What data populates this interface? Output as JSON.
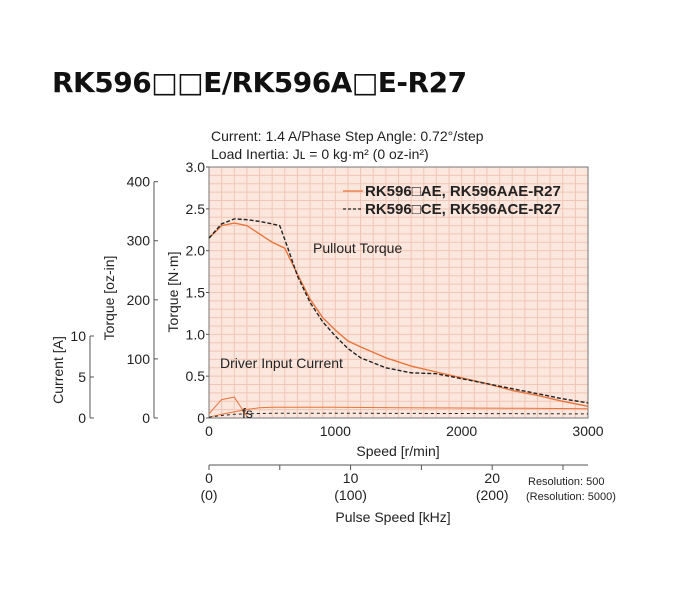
{
  "page": {
    "title": "RK596□□E/RK596A□E-R27"
  },
  "conditions": {
    "line1": "Current: 1.4 A/Phase    Step Angle: 0.72°/step",
    "line2": "Load Inertia: Jʟ = 0 kg·m² (0 oz-in²)"
  },
  "colors": {
    "plot_bg": "#fbe7de",
    "grid": "#f2c6b4",
    "series_ae": "#e8743b",
    "series_ce": "#222222",
    "axis": "#555555"
  },
  "chart_data": {
    "type": "line",
    "xlabel": "Speed [r/min]",
    "ylabel": "Torque [N·m]",
    "xlim": [
      0,
      3000
    ],
    "ylim": [
      0,
      3.0
    ],
    "x_ticks": [
      "0",
      "1000",
      "2000",
      "3000"
    ],
    "y_ticks": [
      "0",
      "0.5",
      "1.0",
      "1.5",
      "2.0",
      "2.5",
      "3.0"
    ],
    "grid": true,
    "legend_position": "top-right",
    "secondary_axes": {
      "torque_oz_in": {
        "label": "Torque [oz-in]",
        "ticks": [
          "0",
          "100",
          "200",
          "300",
          "400"
        ],
        "lim": [
          0,
          424.8
        ]
      },
      "current_a": {
        "label": "Current [A]",
        "ticks": [
          "0",
          "5",
          "10"
        ],
        "lim": [
          0,
          10
        ]
      }
    },
    "pulse_axis": {
      "label": "Pulse Speed [kHz]",
      "ticks": [
        "0",
        "10",
        "20"
      ],
      "ticks_alt": [
        "(0)",
        "(100)",
        "(200)"
      ],
      "res_note": "Resolution: 500",
      "res_note_alt": "(Resolution: 5000)"
    },
    "annotations": {
      "pullout": "Pullout Torque",
      "driver": "Driver Input Current",
      "fs": "fs"
    },
    "series": [
      {
        "name": "RK596□AE, RK596AAE-R27",
        "kind": "torque",
        "x": [
          0,
          100,
          200,
          300,
          400,
          500,
          600,
          700,
          800,
          900,
          1000,
          1100,
          1200,
          1400,
          1600,
          1800,
          2000,
          2200,
          2400,
          2600,
          2800,
          3000
        ],
        "y": [
          2.15,
          2.3,
          2.33,
          2.3,
          2.2,
          2.1,
          2.03,
          1.72,
          1.42,
          1.2,
          1.05,
          0.92,
          0.85,
          0.72,
          0.62,
          0.55,
          0.48,
          0.41,
          0.33,
          0.27,
          0.2,
          0.14
        ]
      },
      {
        "name": "RK596□CE, RK596ACE-R27",
        "kind": "torque",
        "x": [
          0,
          100,
          200,
          300,
          400,
          500,
          560,
          620,
          700,
          800,
          900,
          1000,
          1100,
          1200,
          1400,
          1600,
          1800,
          2000,
          2200,
          2400,
          2600,
          2800,
          3000
        ],
        "y": [
          2.15,
          2.32,
          2.38,
          2.37,
          2.35,
          2.32,
          2.3,
          2.05,
          1.7,
          1.38,
          1.15,
          0.98,
          0.83,
          0.72,
          0.6,
          0.54,
          0.53,
          0.47,
          0.41,
          0.35,
          0.29,
          0.23,
          0.18
        ]
      },
      {
        "name": "RK596□AE, RK596AAE-R27",
        "kind": "current",
        "x": [
          0,
          100,
          200,
          300,
          400,
          500,
          1000,
          1500,
          2000,
          2500,
          3000
        ],
        "y": [
          0.1,
          0.45,
          0.75,
          1.05,
          1.25,
          1.3,
          1.3,
          1.25,
          1.22,
          1.18,
          1.12
        ]
      },
      {
        "name": "RK596□CE, RK596ACE-R27",
        "kind": "current",
        "x": [
          0,
          100,
          200,
          300,
          400,
          500,
          1000,
          1500,
          2000,
          2500,
          3000
        ],
        "y": [
          0.1,
          0.3,
          0.45,
          0.52,
          0.55,
          0.57,
          0.58,
          0.56,
          0.55,
          0.53,
          0.5
        ]
      }
    ],
    "fs_curve": {
      "x": [
        0,
        100,
        200,
        300
      ],
      "y": [
        0.05,
        0.22,
        0.25,
        0.02
      ]
    }
  }
}
